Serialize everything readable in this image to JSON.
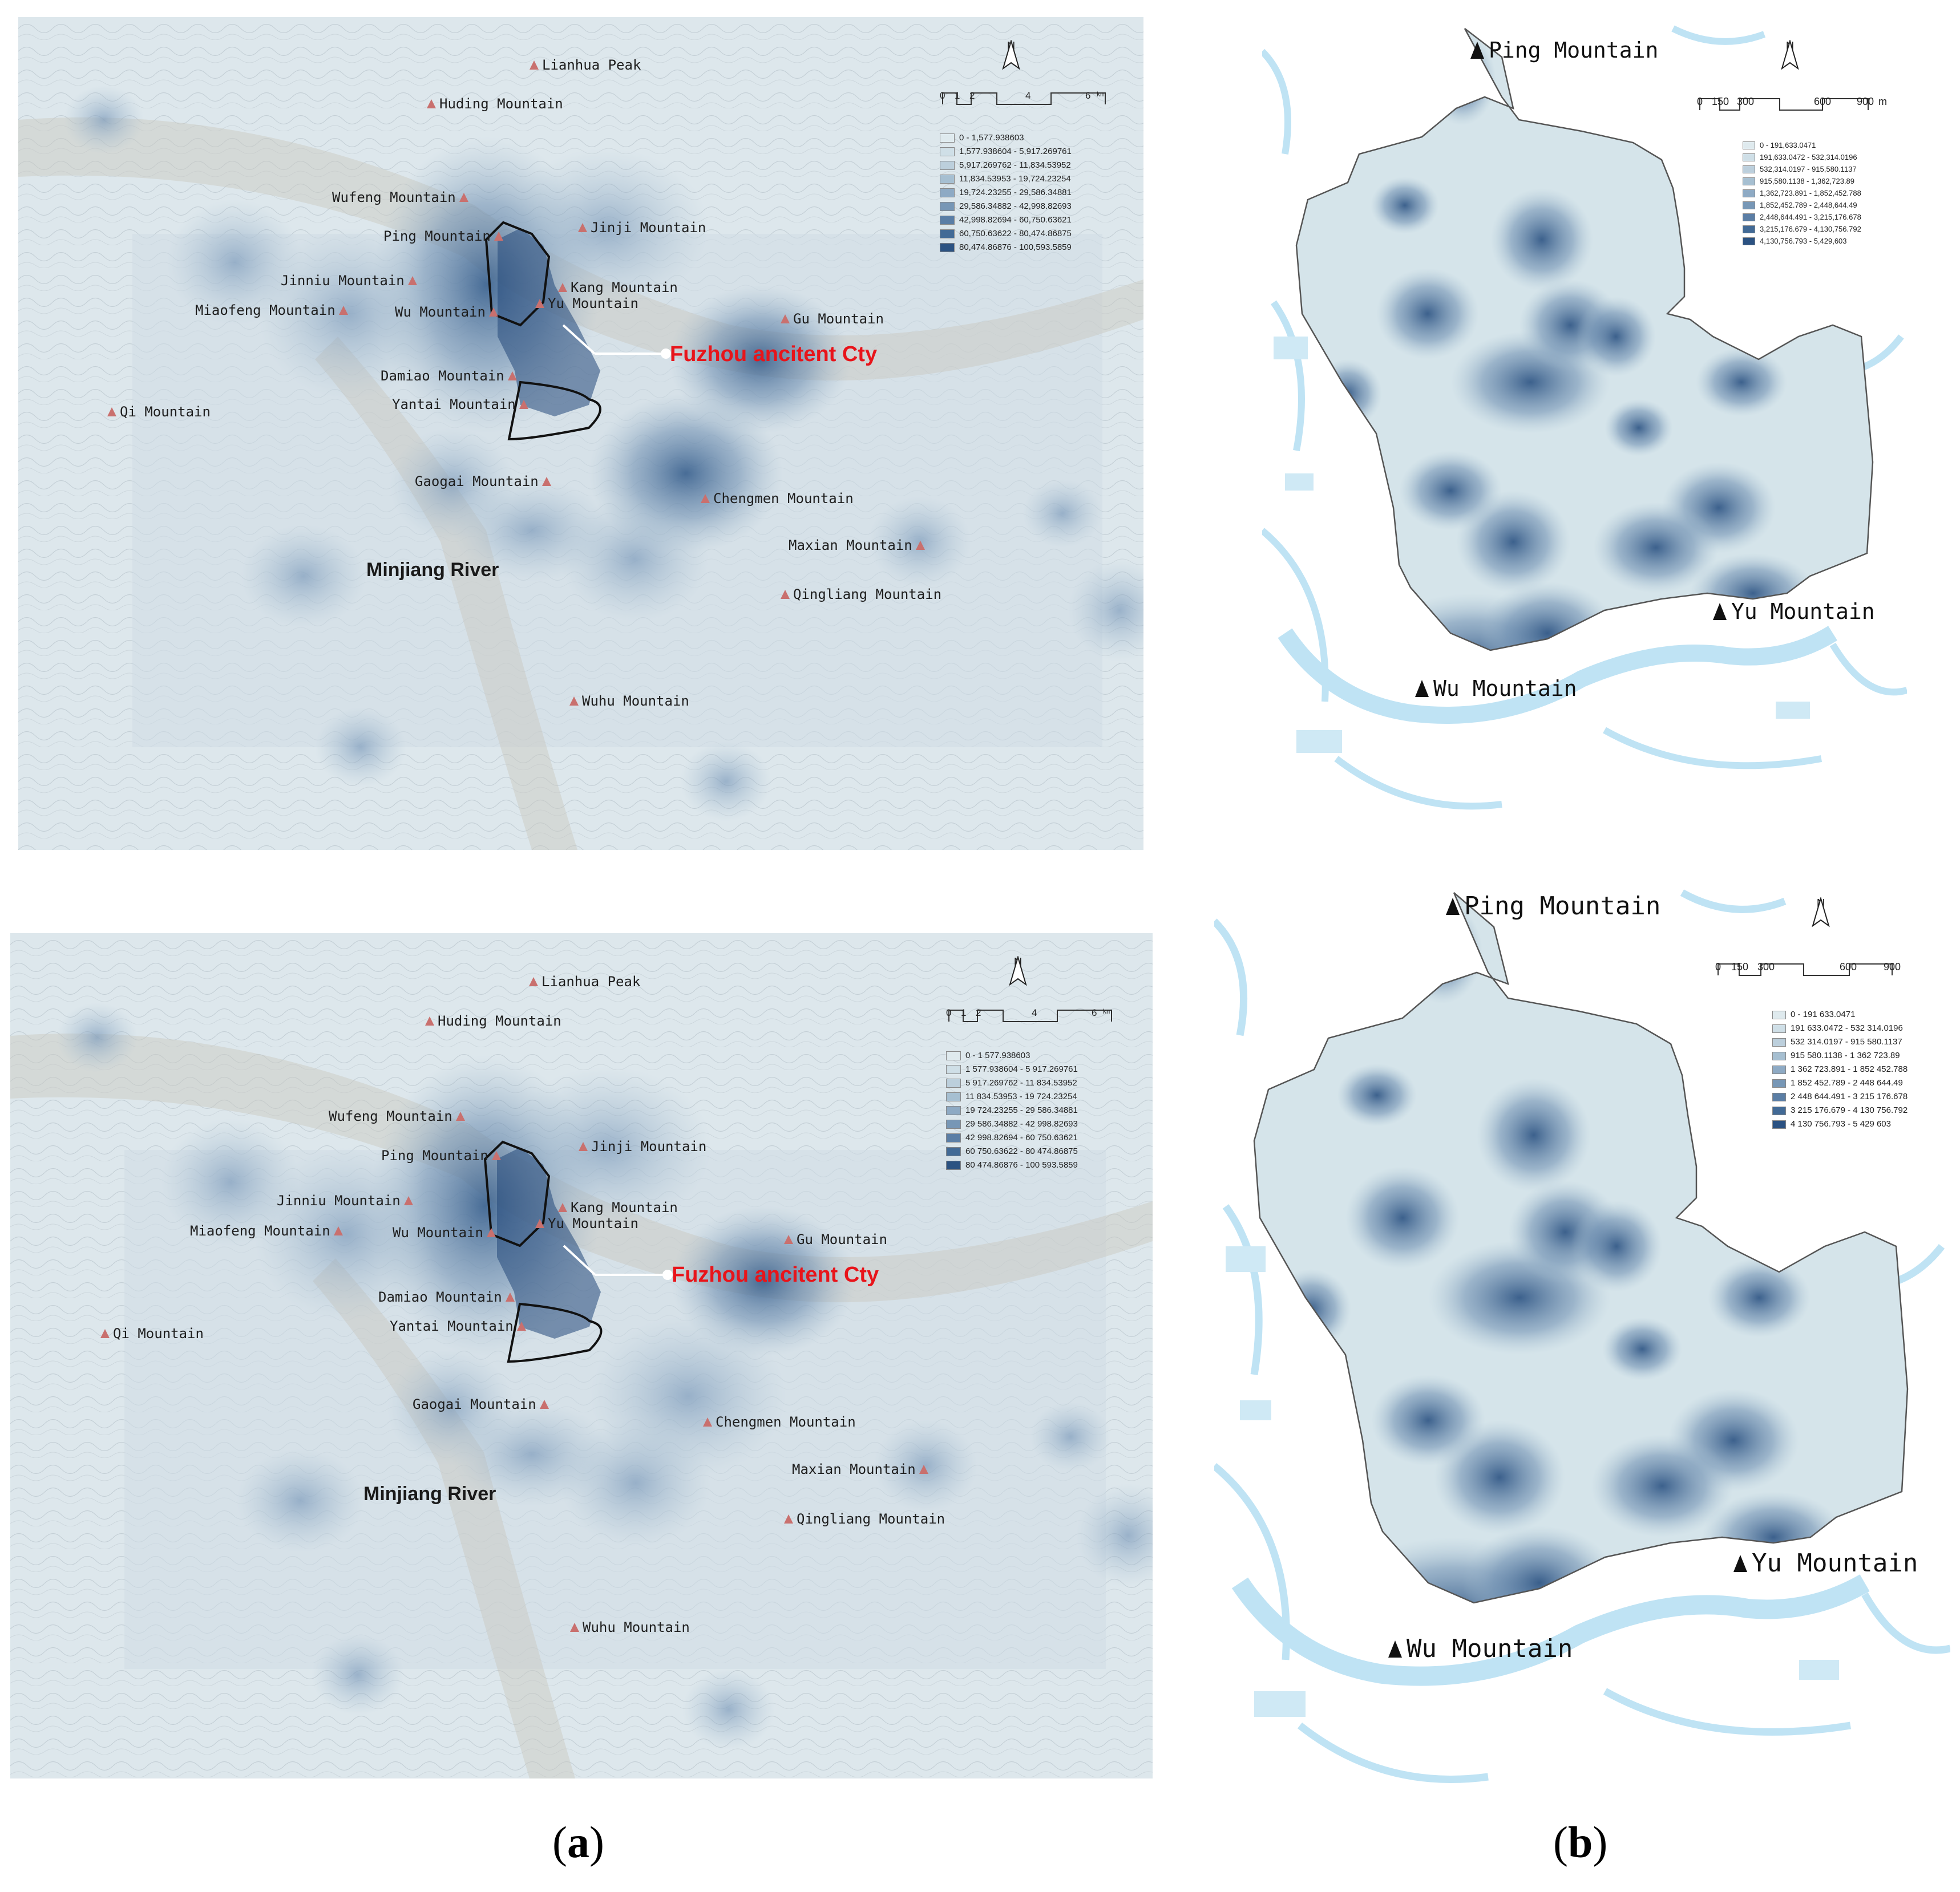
{
  "panel_a": {
    "city_label": "Fuzhou ancitent Cty",
    "river_label": "Minjiang River",
    "mountains": [
      "Lianhua Peak",
      "Huding Mountain",
      "Wufeng Mountain",
      "Ping Mountain",
      "Jinji Mountain",
      "Jinniu Mountain",
      "Kang Mountain",
      "Miaofeng Mountain",
      "Wu Mountain",
      "Yu Mountain",
      "Gu Mountain",
      "Damiao Mountain",
      "Yantai Mountain",
      "Qi Mountain",
      "Gaogai Mountain",
      "Chengmen Mountain",
      "Maxian Mountain",
      "Qingliang Mountain",
      "Wuhu Mountain"
    ],
    "north": "N",
    "scale": {
      "ticks": [
        "0",
        "1",
        "2",
        "4",
        "6"
      ],
      "unit": "km"
    },
    "legend_top": [
      "0 - 1,577.938603",
      "1,577.938604 - 5,917.269761",
      "5,917.269762 - 11,834.53952",
      "11,834.53953 - 19,724.23254",
      "19,724.23255 - 29,586.34881",
      "29,586.34882 - 42,998.82693",
      "42,998.82694 - 60,750.63621",
      "60,750.63622 - 80,474.86875",
      "80,474.86876 - 100,593.5859"
    ],
    "legend_bottom": [
      "0 - 1 577.938603",
      "1 577.938604 - 5 917.269761",
      "5 917.269762 - 11 834.53952",
      "11 834.53953 - 19 724.23254",
      "19 724.23255 - 29 586.34881",
      "29 586.34882 - 42 998.82693",
      "42 998.82694 - 60 750.63621",
      "60 750.63622 - 80 474.86875",
      "80 474.86876 - 100 593.5859"
    ]
  },
  "panel_b": {
    "mountains": [
      "Ping Mountain",
      "Yu Mountain",
      "Wu Mountain"
    ],
    "north": "N",
    "scale": {
      "ticks": [
        "0",
        "150",
        "300",
        "600",
        "900"
      ],
      "unit": "m"
    },
    "legend_top": [
      "0 - 191,633.0471",
      "191,633.0472 - 532,314.0196",
      "532,314.0197 - 915,580.1137",
      "915,580.1138 - 1,362,723.89",
      "1,362,723.891 - 1,852,452.788",
      "1,852,452.789 - 2,448,644.49",
      "2,448,644.491 - 3,215,176.678",
      "3,215,176.679 - 4,130,756.792",
      "4,130,756.793 - 5,429,603"
    ],
    "legend_bottom": [
      "0 - 191 633.0471",
      "191 633.0472 - 532 314.0196",
      "532 314.0197 - 915 580.1137",
      "915 580.1138 - 1 362 723.89",
      "1 362 723.891 - 1 852 452.788",
      "1 852 452.789 - 2 448 644.49",
      "2 448 644.491 - 3 215 176.678",
      "3 215 176.679 - 4 130 756.792",
      "4 130 756.793 - 5 429 603"
    ]
  },
  "legend_colors": [
    "#dfeaee",
    "#cfdfe7",
    "#bccfdc",
    "#a6bfd1",
    "#8eaac4",
    "#7797b6",
    "#5b7ea5",
    "#426a96",
    "#2b5282"
  ],
  "captions": {
    "a": "(a)",
    "b": "(b)"
  }
}
